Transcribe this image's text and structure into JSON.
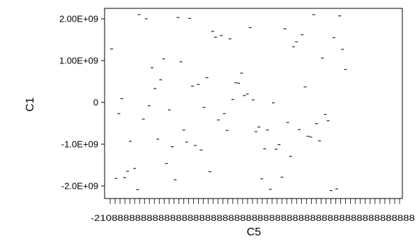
{
  "chart_data": {
    "type": "scatter",
    "title": "",
    "xlabel": "C5",
    "ylabel": "C1",
    "ylim": [
      -2300000000,
      2250000000
    ],
    "y_ticks": [
      {
        "value": 2000000000,
        "label": "2.00E+09"
      },
      {
        "value": 1000000000,
        "label": "1.00E+09"
      },
      {
        "value": 0,
        "label": "0"
      },
      {
        "value": -1000000000,
        "label": "-1.0E+09"
      },
      {
        "value": -2000000000,
        "label": "-2.0E+09"
      }
    ],
    "x_tick_count": 60,
    "x_tick_label_overlap": "-2108888888888888888888888888888888888888888888888888888",
    "xlim": [
      0,
      100
    ],
    "grid": false,
    "points": [
      {
        "x": 0.5,
        "y": 1280000000
      },
      {
        "x": 2,
        "y": -1820000000
      },
      {
        "x": 3,
        "y": -270000000
      },
      {
        "x": 4,
        "y": 90000000
      },
      {
        "x": 5,
        "y": -1800000000
      },
      {
        "x": 6,
        "y": -1650000000
      },
      {
        "x": 7,
        "y": -930000000
      },
      {
        "x": 8.5,
        "y": -1580000000
      },
      {
        "x": 9.5,
        "y": -2090000000
      },
      {
        "x": 10,
        "y": 2100000000
      },
      {
        "x": 11.5,
        "y": -400000000
      },
      {
        "x": 12.5,
        "y": 2000000000
      },
      {
        "x": 13.5,
        "y": -80000000
      },
      {
        "x": 14.5,
        "y": 830000000
      },
      {
        "x": 15.5,
        "y": 330000000
      },
      {
        "x": 16.5,
        "y": -880000000
      },
      {
        "x": 17.5,
        "y": 540000000
      },
      {
        "x": 18.5,
        "y": 1040000000
      },
      {
        "x": 19.5,
        "y": -1460000000
      },
      {
        "x": 20.5,
        "y": -180000000
      },
      {
        "x": 21.5,
        "y": -1060000000
      },
      {
        "x": 22.5,
        "y": -1850000000
      },
      {
        "x": 23.5,
        "y": 2030000000
      },
      {
        "x": 24.5,
        "y": 970000000
      },
      {
        "x": 25.5,
        "y": -660000000
      },
      {
        "x": 26.5,
        "y": -950000000
      },
      {
        "x": 27.5,
        "y": 2010000000
      },
      {
        "x": 28.5,
        "y": 390000000
      },
      {
        "x": 29.5,
        "y": -1030000000
      },
      {
        "x": 30.5,
        "y": 430000000
      },
      {
        "x": 31.5,
        "y": -1140000000
      },
      {
        "x": 32.5,
        "y": -120000000
      },
      {
        "x": 33.5,
        "y": 590000000
      },
      {
        "x": 34.5,
        "y": -1660000000
      },
      {
        "x": 35.5,
        "y": 1700000000
      },
      {
        "x": 36.5,
        "y": 1560000000
      },
      {
        "x": 37.5,
        "y": -420000000
      },
      {
        "x": 38.5,
        "y": 1600000000
      },
      {
        "x": 39.5,
        "y": -270000000
      },
      {
        "x": 40.5,
        "y": -670000000
      },
      {
        "x": 41.5,
        "y": 1520000000
      },
      {
        "x": 42.5,
        "y": 70000000
      },
      {
        "x": 43.5,
        "y": 470000000
      },
      {
        "x": 44.5,
        "y": 460000000
      },
      {
        "x": 45.5,
        "y": 700000000
      },
      {
        "x": 46.5,
        "y": 160000000
      },
      {
        "x": 47.5,
        "y": 200000000
      },
      {
        "x": 48.5,
        "y": 1790000000
      },
      {
        "x": 49.5,
        "y": 60000000
      },
      {
        "x": 50.5,
        "y": -700000000
      },
      {
        "x": 51.5,
        "y": -590000000
      },
      {
        "x": 52.5,
        "y": -1830000000
      },
      {
        "x": 53.5,
        "y": -1110000000
      },
      {
        "x": 54.5,
        "y": -660000000
      },
      {
        "x": 55.5,
        "y": -2080000000
      },
      {
        "x": 56.5,
        "y": -10000000
      },
      {
        "x": 57.5,
        "y": -1120000000
      },
      {
        "x": 58.5,
        "y": -1010000000
      },
      {
        "x": 59.5,
        "y": -1790000000
      },
      {
        "x": 60.5,
        "y": 1760000000
      },
      {
        "x": 61.5,
        "y": -480000000
      },
      {
        "x": 62.5,
        "y": -1290000000
      },
      {
        "x": 63.5,
        "y": 1330000000
      },
      {
        "x": 64.5,
        "y": 1450000000
      },
      {
        "x": 65.5,
        "y": -650000000
      },
      {
        "x": 66.5,
        "y": 1620000000
      },
      {
        "x": 67.5,
        "y": 370000000
      },
      {
        "x": 68.5,
        "y": -810000000
      },
      {
        "x": 69.5,
        "y": -830000000
      },
      {
        "x": 70.5,
        "y": 2100000000
      },
      {
        "x": 71.5,
        "y": -510000000
      },
      {
        "x": 72.5,
        "y": -920000000
      },
      {
        "x": 73.5,
        "y": 1060000000
      },
      {
        "x": 74.5,
        "y": -290000000
      },
      {
        "x": 75.5,
        "y": -440000000
      },
      {
        "x": 76.5,
        "y": -2110000000
      },
      {
        "x": 77.5,
        "y": 1550000000
      },
      {
        "x": 78.5,
        "y": -2070000000
      },
      {
        "x": 79.5,
        "y": 2070000000
      },
      {
        "x": 80.5,
        "y": 1270000000
      },
      {
        "x": 81.5,
        "y": 790000000
      }
    ]
  }
}
